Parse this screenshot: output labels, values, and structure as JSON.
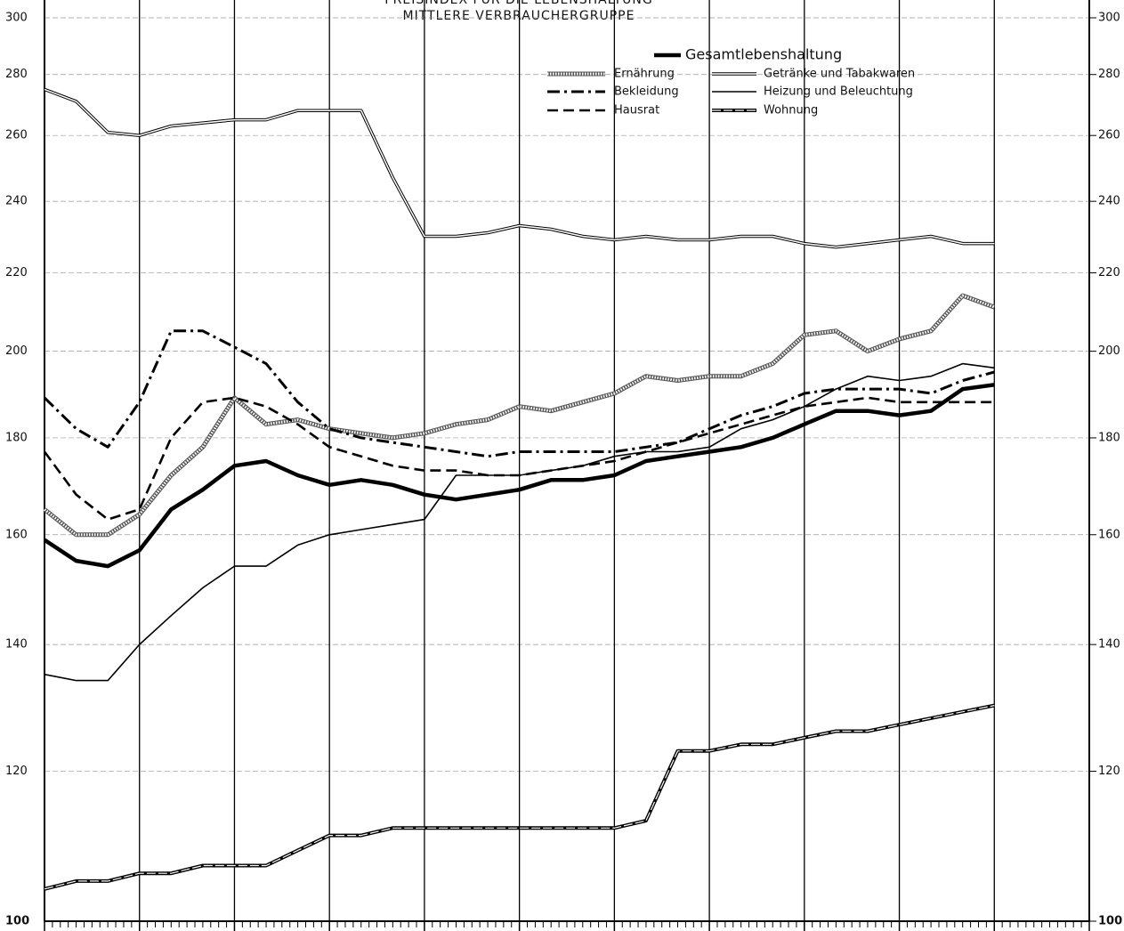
{
  "chart_data": {
    "type": "line",
    "title": "PREISINDEX FÜR DIE LEBENSHALTUNG",
    "subtitle": "MITTLERE VERBRAUCHERGRUPPE",
    "x": [
      0,
      4,
      8,
      12,
      16,
      20,
      24,
      28,
      32,
      36,
      40,
      44,
      48,
      52,
      56,
      60,
      64,
      68,
      72,
      76,
      80,
      84,
      88,
      92,
      96,
      100,
      104,
      108,
      112,
      116,
      120
    ],
    "xlim": [
      0,
      132
    ],
    "xticks": [
      0,
      12,
      24,
      36,
      48,
      60,
      72,
      84,
      96,
      108,
      120,
      132
    ],
    "ylim": [
      100,
      300
    ],
    "yticks": [
      100,
      120,
      140,
      160,
      180,
      200,
      220,
      240,
      260,
      280,
      300
    ],
    "log_scale": true,
    "grid": true,
    "series": [
      {
        "name": "Gesamtlebenshaltung",
        "color": "#000000",
        "style": "thick",
        "values": [
          159,
          155,
          154,
          157,
          165,
          169,
          174,
          175,
          172,
          170,
          171,
          170,
          168,
          167,
          168,
          169,
          171,
          171,
          172,
          175,
          176,
          177,
          178,
          180,
          183,
          186,
          186,
          185,
          186,
          191,
          192
        ]
      },
      {
        "name": "Ernährung",
        "color": "#000000",
        "style": "hatched",
        "values": [
          165,
          160,
          160,
          164,
          172,
          178,
          189,
          183,
          184,
          182,
          181,
          180,
          181,
          183,
          184,
          187,
          186,
          188,
          190,
          194,
          193,
          194,
          194,
          197,
          204,
          205,
          200,
          203,
          205,
          214,
          211
        ]
      },
      {
        "name": "Getränke und Tabakwaren",
        "color": "#000000",
        "style": "double",
        "values": [
          275,
          271,
          261,
          260,
          263,
          264,
          265,
          265,
          268,
          268,
          268,
          247,
          230,
          230,
          231,
          233,
          232,
          230,
          229,
          230,
          229,
          229,
          230,
          230,
          228,
          227,
          228,
          229,
          230,
          228,
          228
        ]
      },
      {
        "name": "Bekleidung",
        "color": "#000000",
        "style": "dashdot",
        "values": [
          189,
          182,
          178,
          188,
          205,
          205,
          201,
          197,
          188,
          182,
          180,
          179,
          178,
          177,
          176,
          177,
          177,
          177,
          177,
          178,
          179,
          182,
          185,
          187,
          190,
          191,
          191,
          191,
          190,
          193,
          195
        ]
      },
      {
        "name": "Heizung und Beleuchtung",
        "color": "#000000",
        "style": "thin",
        "values": [
          135,
          134,
          134,
          140,
          145,
          150,
          154,
          154,
          158,
          160,
          161,
          162,
          163,
          172,
          172,
          172,
          173,
          174,
          176,
          177,
          177,
          178,
          182,
          184,
          187,
          191,
          194,
          193,
          194,
          197,
          196
        ]
      },
      {
        "name": "Hausrat",
        "color": "#000000",
        "style": "dashed",
        "values": [
          177,
          168,
          163,
          165,
          180,
          188,
          189,
          187,
          183,
          178,
          176,
          174,
          173,
          173,
          172,
          172,
          173,
          174,
          175,
          177,
          179,
          181,
          183,
          185,
          187,
          188,
          189,
          188,
          188,
          188,
          188
        ]
      },
      {
        "name": "Wohnung",
        "color": "#000000",
        "style": "doublethick",
        "values": [
          104,
          105,
          105,
          106,
          106,
          107,
          107,
          107,
          109,
          111,
          111,
          112,
          112,
          112,
          112,
          112,
          112,
          112,
          112,
          113,
          123,
          123,
          124,
          124,
          125,
          126,
          126,
          127,
          128,
          129,
          130
        ]
      }
    ]
  }
}
